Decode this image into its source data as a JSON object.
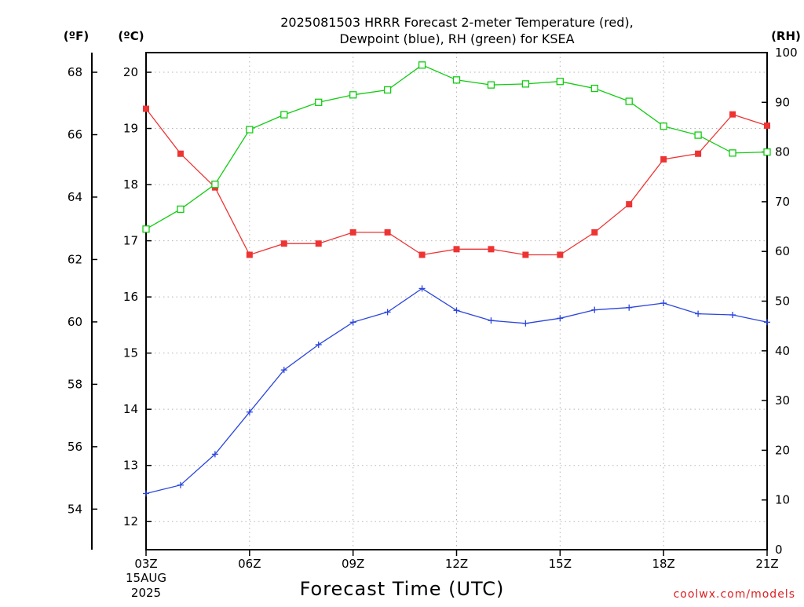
{
  "chart_data": {
    "type": "line",
    "title": "2025081503 HRRR Forecast 2-meter Temperature (red),",
    "subtitle": "Dewpoint (blue), RH (green) for KSEA",
    "xlabel": "Forecast Time (UTC)",
    "credit": "coolwx.com/models",
    "units": {
      "fahrenheit": "(ºF)",
      "celsius": "(ºC)",
      "rh": "(RH)"
    },
    "x_tick_labels": [
      "03Z",
      "06Z",
      "09Z",
      "12Z",
      "15Z",
      "18Z",
      "21Z"
    ],
    "x_date_label": [
      "15AUG",
      "2025"
    ],
    "x_hours": [
      3,
      4,
      5,
      6,
      7,
      8,
      9,
      10,
      11,
      12,
      13,
      14,
      15,
      16,
      17,
      18,
      19,
      20,
      21
    ],
    "xlim": [
      3,
      21
    ],
    "ylim_celsius": [
      11.5,
      20.35
    ],
    "ylim_rh": [
      0,
      100
    ],
    "celsius_ticks": [
      12,
      13,
      14,
      15,
      16,
      17,
      18,
      19,
      20
    ],
    "fahrenheit_ticks": [
      54,
      56,
      58,
      60,
      62,
      64,
      66,
      68
    ],
    "rh_ticks": [
      0,
      10,
      20,
      30,
      40,
      50,
      60,
      70,
      80,
      90,
      100
    ],
    "grid": true,
    "series": [
      {
        "name": "Temperature",
        "axis": "celsius",
        "color": "#ee3333",
        "marker": "filled-square",
        "values": [
          19.35,
          18.55,
          17.95,
          16.75,
          16.95,
          16.95,
          17.15,
          17.15,
          16.75,
          16.85,
          16.85,
          16.75,
          16.75,
          17.15,
          17.65,
          18.45,
          18.55,
          19.25,
          19.05
        ]
      },
      {
        "name": "Dewpoint",
        "axis": "celsius",
        "color": "#2a45dd",
        "marker": "plus",
        "values": [
          12.5,
          12.65,
          13.2,
          13.95,
          14.7,
          15.15,
          15.55,
          15.73,
          16.15,
          15.76,
          15.58,
          15.53,
          15.62,
          15.77,
          15.81,
          15.89,
          15.7,
          15.68,
          15.55
        ]
      },
      {
        "name": "RH",
        "axis": "rh",
        "color": "#11cc11",
        "marker": "open-square",
        "values": [
          64.5,
          68.5,
          73.5,
          84.5,
          87.5,
          90,
          91.5,
          92.5,
          97.5,
          94.5,
          93.5,
          93.7,
          94.2,
          92.8,
          90.2,
          85.2,
          83.4,
          79.8,
          80
        ]
      }
    ]
  }
}
